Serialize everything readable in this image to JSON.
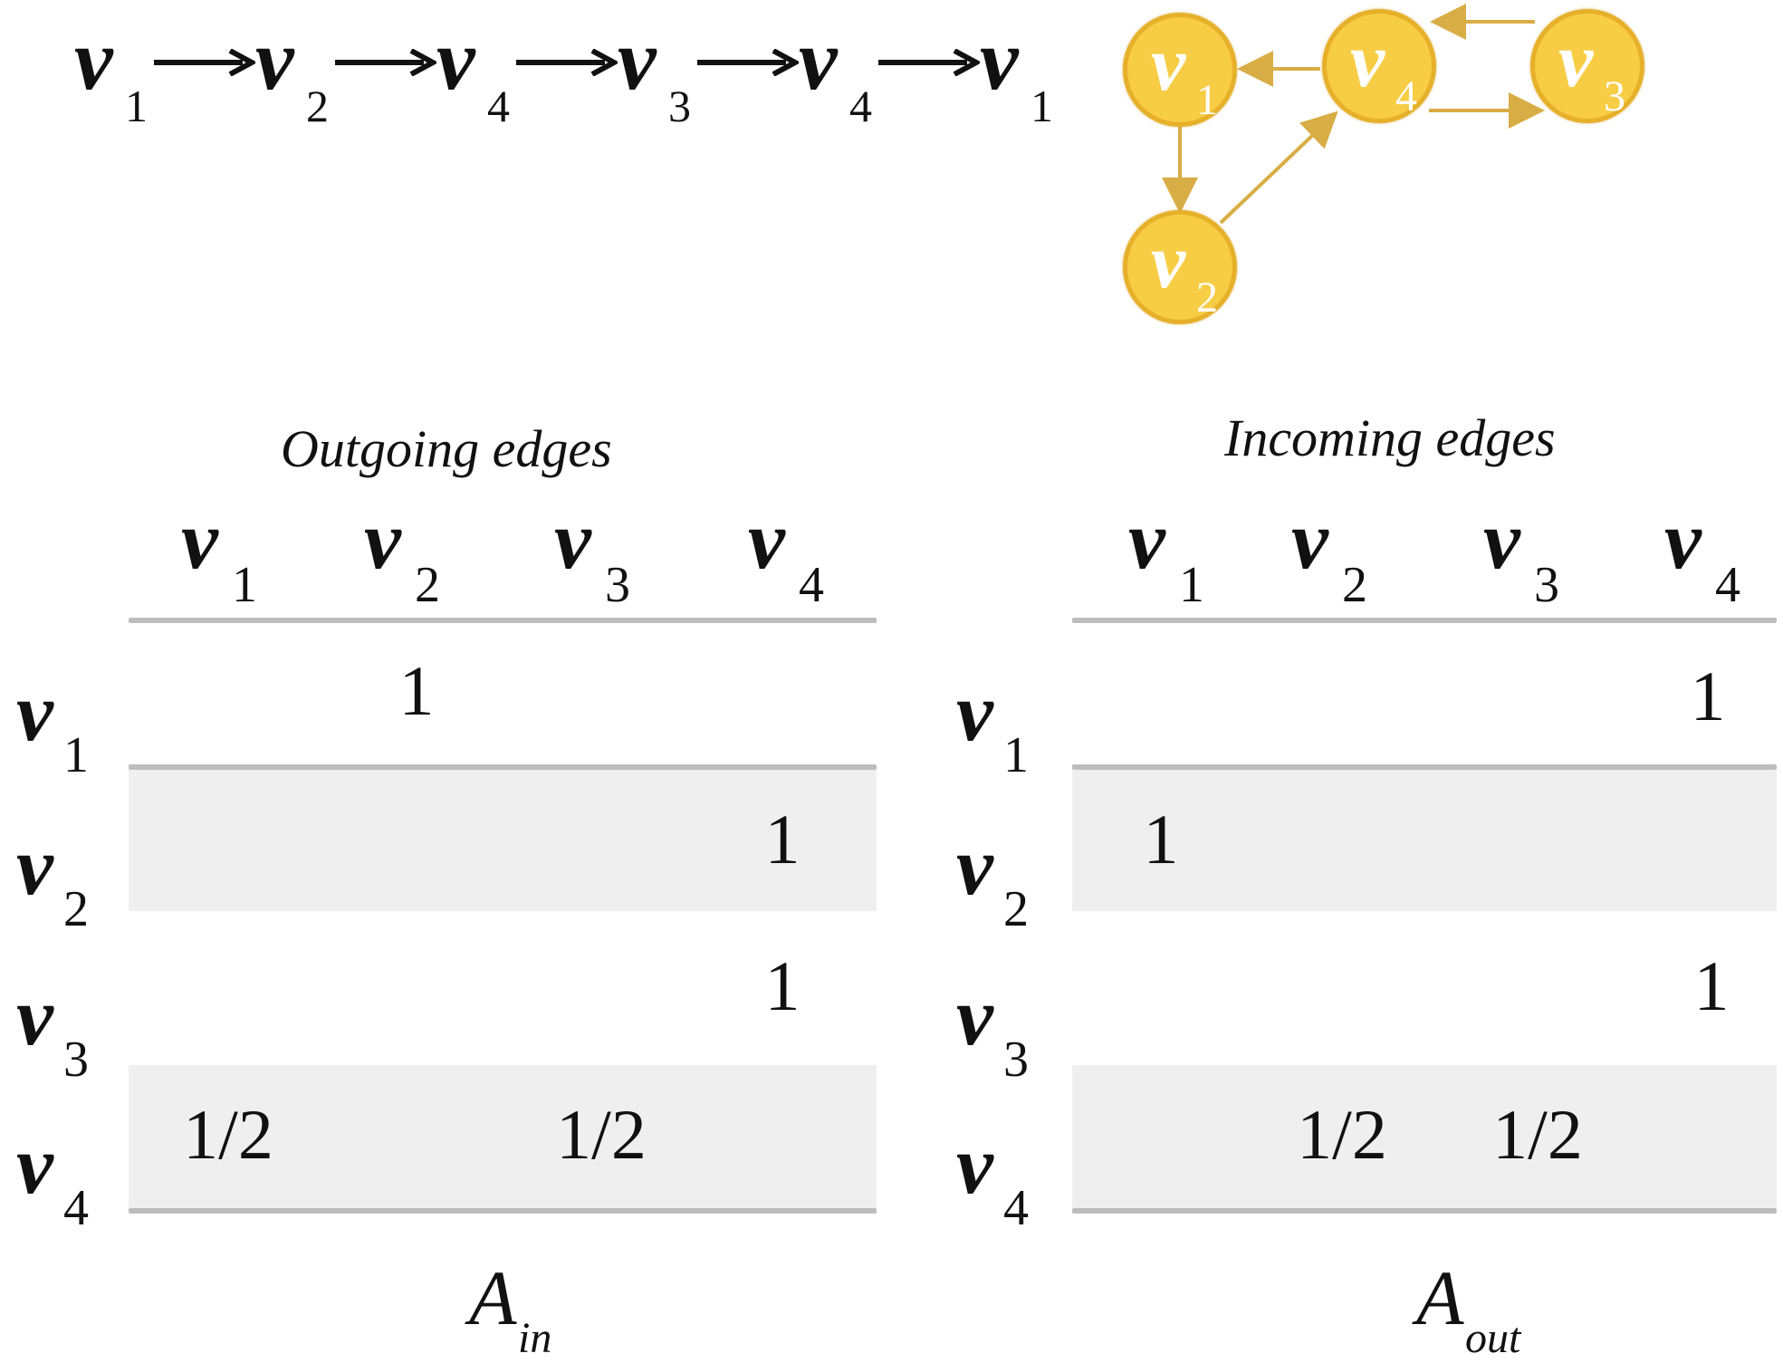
{
  "walk": {
    "nodes": [
      {
        "v": "v",
        "sub": "1"
      },
      {
        "v": "v",
        "sub": "2"
      },
      {
        "v": "v",
        "sub": "4"
      },
      {
        "v": "v",
        "sub": "3"
      },
      {
        "v": "v",
        "sub": "4"
      },
      {
        "v": "v",
        "sub": "1"
      }
    ],
    "arrow_glyph": "→"
  },
  "graph": {
    "node_color": "#f7cd45",
    "edge_color": "#d9ad45",
    "nodes": [
      {
        "id": "v1",
        "v": "v",
        "sub": "1"
      },
      {
        "id": "v4",
        "v": "v",
        "sub": "4"
      },
      {
        "id": "v3",
        "v": "v",
        "sub": "3"
      },
      {
        "id": "v2",
        "v": "v",
        "sub": "2"
      }
    ],
    "edges": [
      {
        "from": "v4",
        "to": "v1"
      },
      {
        "from": "v1",
        "to": "v2"
      },
      {
        "from": "v2",
        "to": "v4"
      },
      {
        "from": "v4",
        "to": "v3"
      },
      {
        "from": "v3",
        "to": "v4"
      }
    ]
  },
  "tables": [
    {
      "id": "in",
      "title": "Outgoing edges",
      "columns": [
        {
          "v": "v",
          "sub": "1"
        },
        {
          "v": "v",
          "sub": "2"
        },
        {
          "v": "v",
          "sub": "3"
        },
        {
          "v": "v",
          "sub": "4"
        }
      ],
      "rows": [
        {
          "v": "v",
          "sub": "1",
          "cells": [
            "",
            "1",
            "",
            ""
          ]
        },
        {
          "v": "v",
          "sub": "2",
          "cells": [
            "",
            "",
            "",
            "1"
          ]
        },
        {
          "v": "v",
          "sub": "3",
          "cells": [
            "",
            "",
            "",
            "1"
          ]
        },
        {
          "v": "v",
          "sub": "4",
          "cells": [
            "1/2",
            "",
            "1/2",
            ""
          ]
        }
      ],
      "caption": {
        "main": "A",
        "sub": "in"
      }
    },
    {
      "id": "out",
      "title": "Incoming edges",
      "columns": [
        {
          "v": "v",
          "sub": "1"
        },
        {
          "v": "v",
          "sub": "2"
        },
        {
          "v": "v",
          "sub": "3"
        },
        {
          "v": "v",
          "sub": "4"
        }
      ],
      "rows": [
        {
          "v": "v",
          "sub": "1",
          "cells": [
            "",
            "",
            "",
            "1"
          ]
        },
        {
          "v": "v",
          "sub": "2",
          "cells": [
            "1",
            "",
            "",
            ""
          ]
        },
        {
          "v": "v",
          "sub": "3",
          "cells": [
            "",
            "",
            "",
            "1"
          ]
        },
        {
          "v": "v",
          "sub": "4",
          "cells": [
            "",
            "1/2",
            "1/2",
            ""
          ]
        }
      ],
      "caption": {
        "main": "A",
        "sub": "out"
      }
    }
  ]
}
